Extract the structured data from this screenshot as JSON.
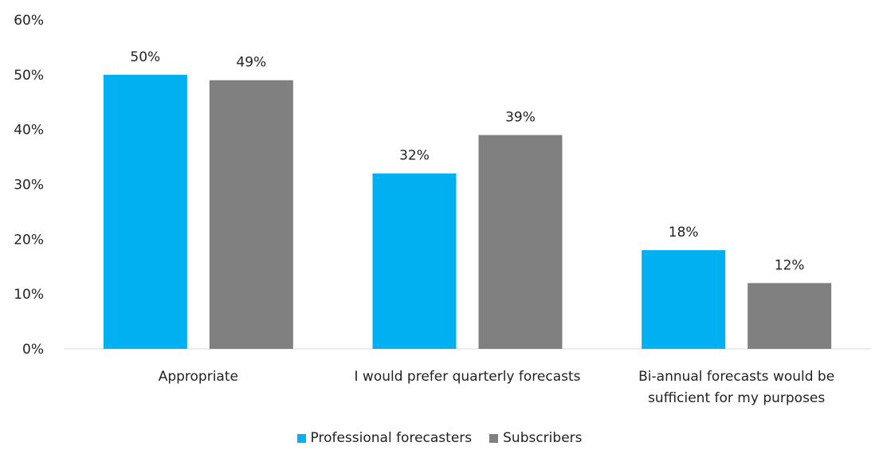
{
  "chart_data": {
    "type": "bar",
    "categories": [
      [
        "Appropriate"
      ],
      [
        "I would prefer quarterly forecasts"
      ],
      [
        "Bi-annual forecasts would be",
        "sufficient for my purposes"
      ]
    ],
    "series": [
      {
        "name": "Professional forecasters",
        "color": "#00b0f0",
        "values": [
          50,
          32,
          18
        ],
        "labels": [
          "50%",
          "32%",
          "18%"
        ]
      },
      {
        "name": "Subscribers",
        "color": "#808080",
        "values": [
          49,
          39,
          12
        ],
        "labels": [
          "49%",
          "39%",
          "12%"
        ]
      }
    ],
    "ylim": [
      0,
      60
    ],
    "yticks": [
      {
        "value": 0,
        "label": "0%"
      },
      {
        "value": 10,
        "label": "10%"
      },
      {
        "value": 20,
        "label": "20%"
      },
      {
        "value": 30,
        "label": "30%"
      },
      {
        "value": 40,
        "label": "40%"
      },
      {
        "value": 50,
        "label": "50%"
      },
      {
        "value": 60,
        "label": "60%"
      }
    ],
    "grid": false,
    "legend_position": "bottom"
  }
}
